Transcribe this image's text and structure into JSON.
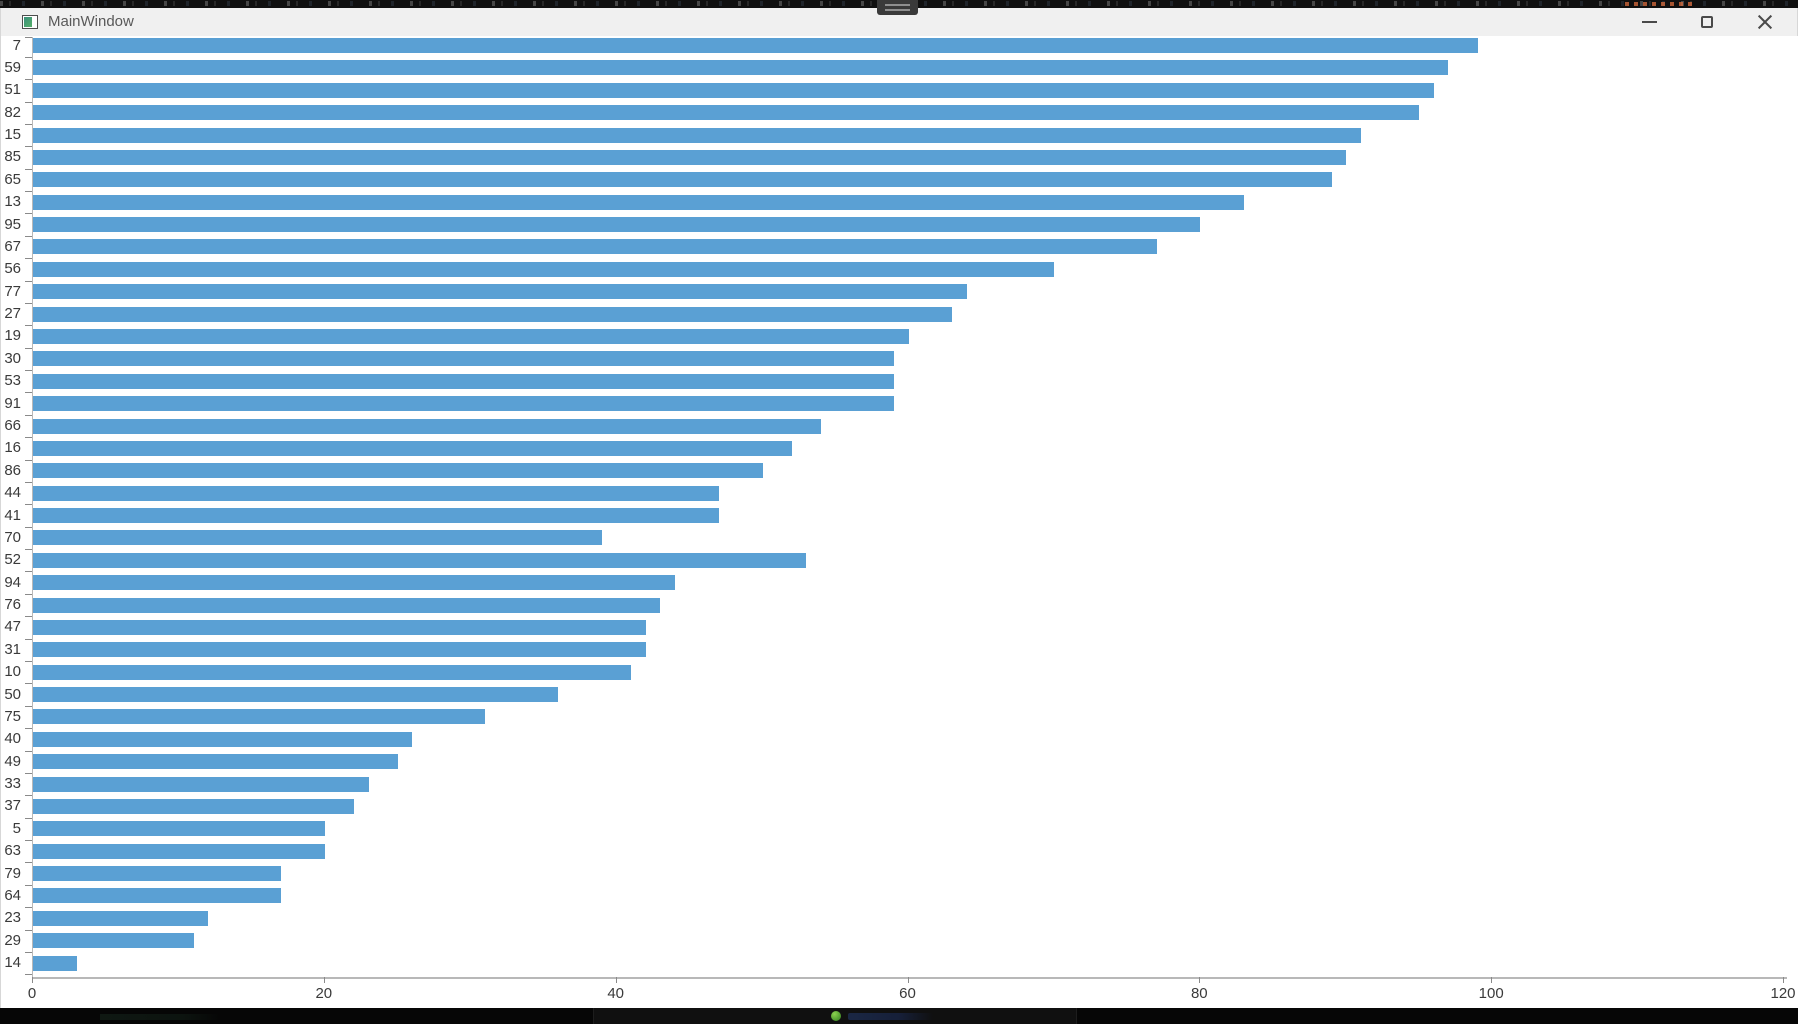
{
  "window": {
    "title": "MainWindow",
    "controls": [
      "minimize",
      "maximize",
      "close"
    ]
  },
  "chart_data": {
    "type": "bar",
    "orientation": "horizontal",
    "title": "",
    "xlabel": "",
    "ylabel": "",
    "categories": [
      "7",
      "59",
      "51",
      "82",
      "15",
      "85",
      "65",
      "13",
      "95",
      "67",
      "56",
      "77",
      "27",
      "19",
      "30",
      "53",
      "91",
      "66",
      "16",
      "86",
      "44",
      "41",
      "70",
      "52",
      "94",
      "76",
      "47",
      "31",
      "10",
      "50",
      "75",
      "40",
      "49",
      "33",
      "37",
      "5",
      "63",
      "79",
      "64",
      "23",
      "29",
      "14"
    ],
    "values": [
      99,
      97,
      96,
      95,
      91,
      90,
      89,
      83,
      80,
      77,
      70,
      64,
      63,
      60,
      59,
      59,
      59,
      54,
      52,
      50,
      47,
      47,
      39,
      53,
      44,
      43,
      42,
      42,
      41,
      36,
      31,
      26,
      25,
      23,
      22,
      20,
      20,
      17,
      17,
      12,
      11,
      3
    ],
    "xlim": [
      0,
      120
    ],
    "x_ticks": [
      0,
      20,
      40,
      60,
      80,
      100,
      120
    ],
    "grid": false,
    "legend": false,
    "bar_color": "#5AA0D4",
    "axis_color": "#b8b8b8",
    "tick_color": "#8a8a8a",
    "text_color": "#3a3a3a"
  },
  "taskbar": {
    "app_icon": "green-app-icon"
  }
}
